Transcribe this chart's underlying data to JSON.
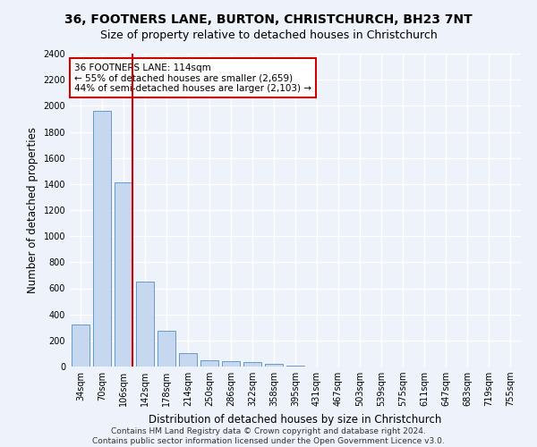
{
  "title_line1": "36, FOOTNERS LANE, BURTON, CHRISTCHURCH, BH23 7NT",
  "title_line2": "Size of property relative to detached houses in Christchurch",
  "xlabel": "Distribution of detached houses by size in Christchurch",
  "ylabel": "Number of detached properties",
  "bar_labels": [
    "34sqm",
    "70sqm",
    "106sqm",
    "142sqm",
    "178sqm",
    "214sqm",
    "250sqm",
    "286sqm",
    "322sqm",
    "358sqm",
    "395sqm",
    "431sqm",
    "467sqm",
    "503sqm",
    "539sqm",
    "575sqm",
    "611sqm",
    "647sqm",
    "683sqm",
    "719sqm",
    "755sqm"
  ],
  "bar_values": [
    325,
    1960,
    1410,
    650,
    275,
    105,
    50,
    40,
    35,
    22,
    5,
    0,
    0,
    0,
    0,
    0,
    0,
    0,
    0,
    0,
    0
  ],
  "bar_color": "#c5d8f0",
  "bar_edge_color": "#6699cc",
  "ylim": [
    0,
    2400
  ],
  "yticks": [
    0,
    200,
    400,
    600,
    800,
    1000,
    1200,
    1400,
    1600,
    1800,
    2000,
    2200,
    2400
  ],
  "annotation_title": "36 FOOTNERS LANE: 114sqm",
  "annotation_line1": "← 55% of detached houses are smaller (2,659)",
  "annotation_line2": "44% of semi-detached houses are larger (2,103) →",
  "vline_x_index": 2,
  "vline_color": "#cc0000",
  "annotation_box_facecolor": "#ffffff",
  "annotation_box_edgecolor": "#cc0000",
  "footer_line1": "Contains HM Land Registry data © Crown copyright and database right 2024.",
  "footer_line2": "Contains public sector information licensed under the Open Government Licence v3.0.",
  "background_color": "#eef2fa",
  "grid_color": "#ffffff",
  "title_fontsize": 10,
  "subtitle_fontsize": 9,
  "axis_label_fontsize": 8.5,
  "tick_fontsize": 7,
  "annotation_fontsize": 7.5,
  "footer_fontsize": 6.5
}
